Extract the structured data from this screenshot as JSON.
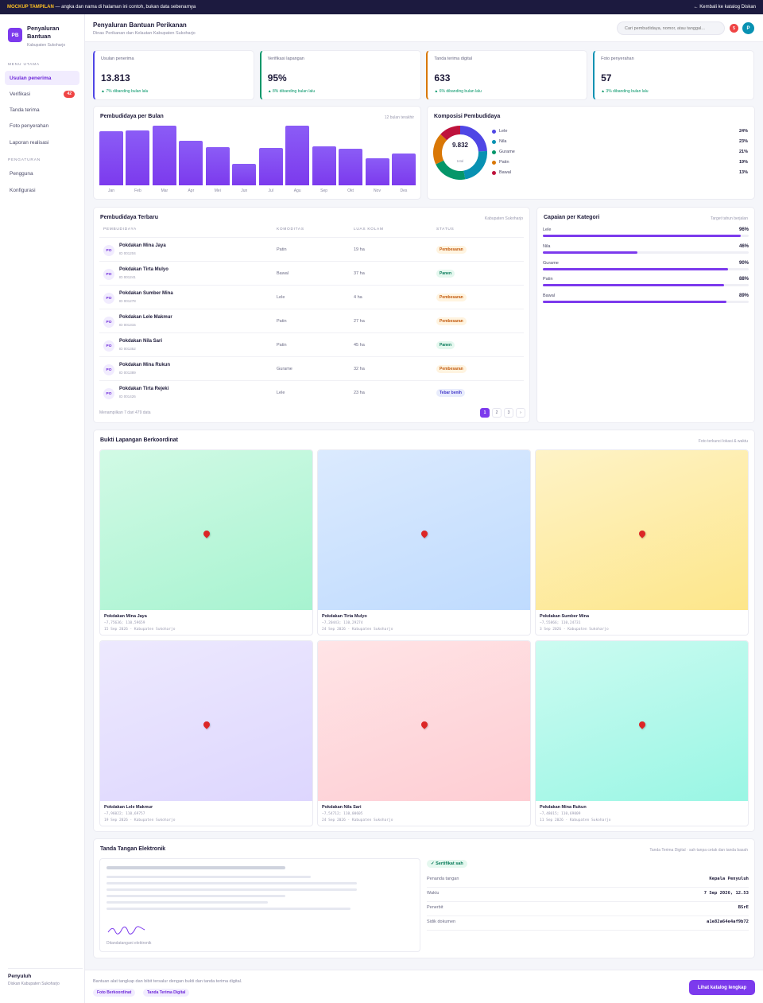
{
  "topbar": {
    "mockup_label": "MOCKUP TAMPILAN",
    "notice": " — angka dan nama di halaman ini contoh, bukan data sebenarnya",
    "back_link": "← Kembali ke katalog Diskan"
  },
  "brand": {
    "logo": "PB",
    "name": "Penyaluran Bantuan",
    "sub": "Kabupaten Sukoharjo"
  },
  "sidebar": {
    "section_main": "MENU UTAMA",
    "items": [
      {
        "label": "Usulan penerima",
        "active": true
      },
      {
        "label": "Verifikasi",
        "badge": "42"
      },
      {
        "label": "Tanda terima"
      },
      {
        "label": "Foto penyerahan"
      },
      {
        "label": "Laporan realisasi"
      }
    ],
    "section_settings": "PENGATURAN",
    "settings_items": [
      {
        "label": "Pengguna"
      },
      {
        "label": "Konfigurasi"
      }
    ],
    "footer_role": "Penyuluh",
    "footer_org": "Diskan Kabupaten Sukoharjo"
  },
  "header": {
    "title": "Penyaluran Bantuan Perikanan",
    "subtitle": "Dinas Perikanan dan Kelautan Kabupaten Sukoharjo",
    "search_placeholder": "Cari pembudidaya, nomor, atau tanggal...",
    "notif": "5",
    "avatar": "P"
  },
  "kpis": [
    {
      "label": "Usulan penerima",
      "value": "13.813",
      "delta": "▲ 7% dibanding bulan lalu",
      "color": "#4f46e5"
    },
    {
      "label": "Verifikasi lapangan",
      "value": "95%",
      "delta": "▲ 8% dibanding bulan lalu",
      "color": "#059669"
    },
    {
      "label": "Tanda terima digital",
      "value": "633",
      "delta": "▲ 6% dibanding bulan lalu",
      "color": "#d97706"
    },
    {
      "label": "Foto penyerahan",
      "value": "57",
      "delta": "▲ 3% dibanding bulan lalu",
      "color": "#0891b2"
    }
  ],
  "chart_data": [
    {
      "type": "bar",
      "title": "Pembudidaya per Bulan",
      "note": "12 bulan terakhir",
      "categories": [
        "Jan",
        "Feb",
        "Mar",
        "Apr",
        "Mei",
        "Jun",
        "Jul",
        "Agu",
        "Sep",
        "Okt",
        "Nov",
        "Des"
      ],
      "values": [
        68,
        69,
        75,
        56,
        48,
        27,
        47,
        75,
        49,
        46,
        34,
        40
      ],
      "ylim": [
        0,
        75
      ],
      "color": "#7c3aed"
    },
    {
      "type": "pie",
      "title": "Komposisi Pembudidaya",
      "total": "9.832",
      "total_label": "total",
      "slices": [
        {
          "name": "Lele",
          "value": 24,
          "label": "24%",
          "color": "#4f46e5"
        },
        {
          "name": "Nila",
          "value": 23,
          "label": "23%",
          "color": "#0891b2"
        },
        {
          "name": "Gurame",
          "value": 21,
          "label": "21%",
          "color": "#059669"
        },
        {
          "name": "Patin",
          "value": 19,
          "label": "19%",
          "color": "#d97706"
        },
        {
          "name": "Bawal",
          "value": 13,
          "label": "13%",
          "color": "#be123c"
        }
      ]
    }
  ],
  "table": {
    "title": "Pembudidaya Terbaru",
    "note": "Kabupaten Sukoharjo",
    "headers": [
      "PEMBUDIDAYA",
      "KOMODITAS",
      "LUAS KOLAM",
      "STATUS"
    ],
    "rows": [
      {
        "initials": "PO",
        "name": "Pokdakan Mina Jaya",
        "id": "ID 001204",
        "commodity": "Patin",
        "area": "19 ha",
        "status": "Pembesaran",
        "kind": "pembesaran"
      },
      {
        "initials": "PO",
        "name": "Pokdakan Tirta Mulyo",
        "id": "ID 001241",
        "commodity": "Bawal",
        "area": "37 ha",
        "status": "Panen",
        "kind": "panen"
      },
      {
        "initials": "PO",
        "name": "Pokdakan Sumber Mina",
        "id": "ID 001278",
        "commodity": "Lele",
        "area": "4 ha",
        "status": "Pembesaran",
        "kind": "pembesaran"
      },
      {
        "initials": "PO",
        "name": "Pokdakan Lele Makmur",
        "id": "ID 001315",
        "commodity": "Patin",
        "area": "27 ha",
        "status": "Pembesaran",
        "kind": "pembesaran"
      },
      {
        "initials": "PO",
        "name": "Pokdakan Nila Sari",
        "id": "ID 001352",
        "commodity": "Patin",
        "area": "45 ha",
        "status": "Panen",
        "kind": "panen"
      },
      {
        "initials": "PO",
        "name": "Pokdakan Mina Rukun",
        "id": "ID 001389",
        "commodity": "Gurame",
        "area": "32 ha",
        "status": "Pembesaran",
        "kind": "pembesaran"
      },
      {
        "initials": "PO",
        "name": "Pokdakan Tirta Rejeki",
        "id": "ID 001426",
        "commodity": "Lele",
        "area": "23 ha",
        "status": "Tebar benih",
        "kind": "tebar"
      }
    ],
    "footer": "Menampilkan 7 dari 479 data",
    "pages": [
      "1",
      "2",
      "3",
      "›"
    ]
  },
  "categories": {
    "title": "Capaian per Kategori",
    "note": "Target tahun berjalan",
    "items": [
      {
        "name": "Lele",
        "pct": 96,
        "label": "96%"
      },
      {
        "name": "Nila",
        "pct": 46,
        "label": "46%"
      },
      {
        "name": "Gurame",
        "pct": 90,
        "label": "90%"
      },
      {
        "name": "Patin",
        "pct": 88,
        "label": "88%"
      },
      {
        "name": "Bawal",
        "pct": 89,
        "label": "89%"
      }
    ]
  },
  "photos": {
    "title": "Bukti Lapangan Berkoordinat",
    "note": "Foto terkunci lokasi & waktu",
    "items": [
      {
        "name": "Pokdakan Mina Jaya",
        "coord": "−7,75636; 110,59659",
        "date": "15 Sep 2026 · Kabupaten Sukoharjo",
        "c1": "#d1fae5",
        "c2": "#a7f3d0"
      },
      {
        "name": "Pokdakan Tirta Mulyo",
        "coord": "−7,20443; 110,29274",
        "date": "24 Sep 2026 · Kabupaten Sukoharjo",
        "c1": "#dbeafe",
        "c2": "#bfdbfe"
      },
      {
        "name": "Pokdakan Sumber Mina",
        "coord": "−7,55866; 110,24731",
        "date": "3 Sep 2026 · Kabupaten Sukoharjo",
        "c1": "#fef3c7",
        "c2": "#fde68a"
      },
      {
        "name": "Pokdakan Lele Makmur",
        "coord": "−7,96022; 110,69757",
        "date": "19 Sep 2026 · Kabupaten Sukoharjo",
        "c1": "#ede9fe",
        "c2": "#ddd6fe"
      },
      {
        "name": "Pokdakan Nila Sari",
        "coord": "−7,54712; 110,00605",
        "date": "24 Sep 2026 · Kabupaten Sukoharjo",
        "c1": "#ffe4e6",
        "c2": "#fecdd3"
      },
      {
        "name": "Pokdakan Mina Rukun",
        "coord": "−7,48015; 110,69009",
        "date": "11 Sep 2026 · Kabupaten Sukoharjo",
        "c1": "#ccfbf1",
        "c2": "#99f6e4"
      }
    ]
  },
  "signature": {
    "title": "Tanda Tangan Elektronik",
    "note": "Tanda Terima Digital · sah tanpa cetak dan tanda basah",
    "signed_label": "Ditandatangani elektronik",
    "cert": "✓ Sertifikat sah",
    "fields": [
      {
        "key": "Penanda tangan",
        "value": "Kepala Penyuluh"
      },
      {
        "key": "Waktu",
        "value": "7 Sep 2026, 12.53"
      },
      {
        "key": "Penerbit",
        "value": "BSrE"
      },
      {
        "key": "Sidik dokumen",
        "value": "a1e82a64e4af9b72"
      }
    ]
  },
  "footer": {
    "text": "Bantuan alat tangkap dan bibit tersalur dengan bukti dan tanda terima digital.",
    "chips": [
      "Foto Berkoordinat",
      "Tanda Terima Digital"
    ],
    "cta": "Lihat katalog lengkap"
  }
}
